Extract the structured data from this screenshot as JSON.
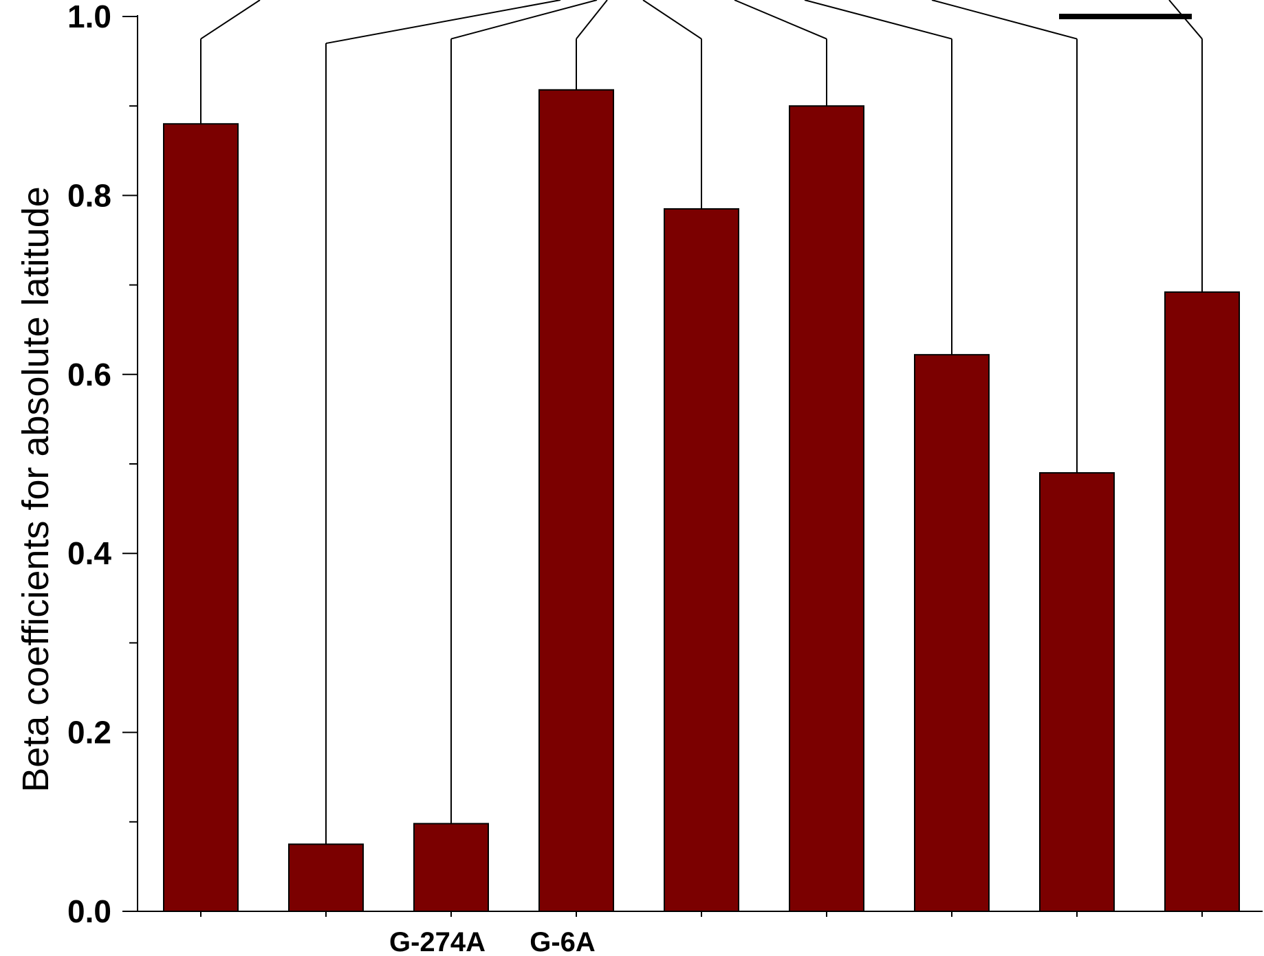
{
  "chart_data": {
    "type": "bar",
    "title": "",
    "xlabel": "",
    "ylabel": "Beta coefficients for absolute latitude",
    "ylim": [
      0,
      1.0
    ],
    "yticks": [
      0.0,
      0.2,
      0.4,
      0.6,
      0.8,
      1.0
    ],
    "ytick_labels": [
      "0.0",
      "0.2",
      "0.4",
      "0.6",
      "0.8",
      "1.0"
    ],
    "grid": false,
    "legend": "none",
    "bar_color": "#7b0000",
    "categories": [
      "",
      "",
      "G-274A",
      "G-6A",
      "",
      "",
      "",
      "",
      ""
    ],
    "values": [
      0.88,
      0.075,
      0.098,
      0.918,
      0.785,
      0.9,
      0.622,
      0.49,
      0.692
    ],
    "error_upper": [
      0.975,
      0.97,
      0.975,
      0.975,
      0.975,
      0.975,
      0.975,
      0.975,
      0.975
    ],
    "annotations": [
      "tree-like connector lines above bars",
      "horizontal black bar near top right"
    ]
  }
}
